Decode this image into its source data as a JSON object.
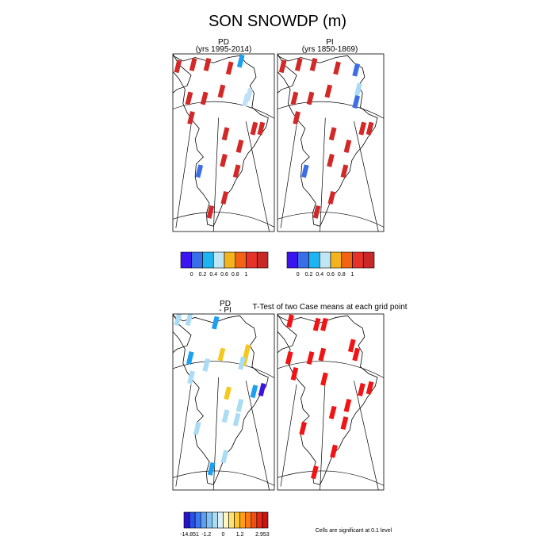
{
  "title": "SON SNOWDP (m)",
  "panels": [
    {
      "id": "pd",
      "label": "PD",
      "sublabel": "(yrs 1995-2014)"
    },
    {
      "id": "pi",
      "label": "PI",
      "sublabel": "(yrs 1850-1869)"
    },
    {
      "id": "diff",
      "label": "PD",
      "sublabel": "- PI"
    },
    {
      "id": "ttest",
      "label": "T-Test of two Case means at each grid point"
    }
  ],
  "colorbar_abs": {
    "colors": [
      "#3c14f0",
      "#3a6ee8",
      "#1eb4f0",
      "#bee6f5",
      "#f5b41e",
      "#f06414",
      "#e63228",
      "#c82828"
    ],
    "labels": [
      "0",
      "0.2",
      "0.4",
      "0.6",
      "0.8",
      "1"
    ]
  },
  "colorbar_diff": {
    "colors": [
      "#2814c8",
      "#2850e6",
      "#3c78f0",
      "#5aa0f5",
      "#82c3f5",
      "#aadcf5",
      "#dcf0fa",
      "#fff5be",
      "#ffe178",
      "#ffc828",
      "#ffa014",
      "#ff7814",
      "#f05014",
      "#e62814",
      "#c81414"
    ],
    "labels": [
      "-14.851",
      "-1.2",
      "0",
      "1.2",
      "2.953"
    ]
  },
  "significance_note": "Cells are significant at 0.1 level",
  "palette": {
    "red": "#d22828",
    "dark_blue": "#3c6ee6",
    "light_blue": "#aadcf5",
    "cyan": "#1ea0f0",
    "pale_blue": "#bee1f5",
    "yellow": "#f5c81e",
    "purple": "#3c14dc",
    "sig_red": "#f01414"
  },
  "cells": {
    "pd": [
      {
        "u": 0.05,
        "v": 0.07,
        "c": "red"
      },
      {
        "u": 0.2,
        "v": 0.06,
        "c": "red"
      },
      {
        "u": 0.34,
        "v": 0.06,
        "c": "red"
      },
      {
        "u": 0.56,
        "v": 0.08,
        "c": "red"
      },
      {
        "u": 0.67,
        "v": 0.04,
        "c": "cyan"
      },
      {
        "u": 0.16,
        "v": 0.25,
        "c": "red"
      },
      {
        "u": 0.31,
        "v": 0.25,
        "c": "red"
      },
      {
        "u": 0.48,
        "v": 0.21,
        "c": "red"
      },
      {
        "u": 0.75,
        "v": 0.23,
        "c": "pale_blue"
      },
      {
        "u": 0.72,
        "v": 0.26,
        "c": "pale_blue"
      },
      {
        "u": 0.18,
        "v": 0.36,
        "c": "red"
      },
      {
        "u": 0.52,
        "v": 0.45,
        "c": "red"
      },
      {
        "u": 0.8,
        "v": 0.42,
        "c": "red"
      },
      {
        "u": 0.87,
        "v": 0.42,
        "c": "red"
      },
      {
        "u": 0.66,
        "v": 0.52,
        "c": "red"
      },
      {
        "u": 0.5,
        "v": 0.6,
        "c": "red"
      },
      {
        "u": 0.63,
        "v": 0.66,
        "c": "red"
      },
      {
        "u": 0.26,
        "v": 0.66,
        "c": "dark_blue"
      },
      {
        "u": 0.51,
        "v": 0.81,
        "c": "red"
      },
      {
        "u": 0.37,
        "v": 0.89,
        "c": "red"
      }
    ],
    "pi": [
      {
        "u": 0.05,
        "v": 0.07,
        "c": "red"
      },
      {
        "u": 0.2,
        "v": 0.06,
        "c": "red"
      },
      {
        "u": 0.34,
        "v": 0.06,
        "c": "red"
      },
      {
        "u": 0.56,
        "v": 0.08,
        "c": "red"
      },
      {
        "u": 0.74,
        "v": 0.09,
        "c": "dark_blue"
      },
      {
        "u": 0.16,
        "v": 0.25,
        "c": "red"
      },
      {
        "u": 0.31,
        "v": 0.25,
        "c": "red"
      },
      {
        "u": 0.48,
        "v": 0.21,
        "c": "red"
      },
      {
        "u": 0.76,
        "v": 0.2,
        "c": "light_blue"
      },
      {
        "u": 0.74,
        "v": 0.27,
        "c": "dark_blue"
      },
      {
        "u": 0.18,
        "v": 0.36,
        "c": "red"
      },
      {
        "u": 0.52,
        "v": 0.45,
        "c": "red"
      },
      {
        "u": 0.8,
        "v": 0.42,
        "c": "red"
      },
      {
        "u": 0.87,
        "v": 0.42,
        "c": "red"
      },
      {
        "u": 0.66,
        "v": 0.52,
        "c": "red"
      },
      {
        "u": 0.5,
        "v": 0.6,
        "c": "red"
      },
      {
        "u": 0.63,
        "v": 0.66,
        "c": "red"
      },
      {
        "u": 0.26,
        "v": 0.66,
        "c": "dark_blue"
      },
      {
        "u": 0.51,
        "v": 0.81,
        "c": "red"
      },
      {
        "u": 0.37,
        "v": 0.89,
        "c": "red"
      }
    ],
    "diff": [
      {
        "u": 0.05,
        "v": 0.03,
        "c": "light_blue"
      },
      {
        "u": 0.16,
        "v": 0.03,
        "c": "light_blue"
      },
      {
        "u": 0.42,
        "v": 0.05,
        "c": "cyan"
      },
      {
        "u": 0.17,
        "v": 0.25,
        "c": "cyan"
      },
      {
        "u": 0.33,
        "v": 0.29,
        "c": "light_blue"
      },
      {
        "u": 0.48,
        "v": 0.23,
        "c": "yellow"
      },
      {
        "u": 0.73,
        "v": 0.21,
        "c": "yellow"
      },
      {
        "u": 0.71,
        "v": 0.26,
        "c": "yellow"
      },
      {
        "u": 0.68,
        "v": 0.28,
        "c": "light_blue"
      },
      {
        "u": 0.18,
        "v": 0.36,
        "c": "light_blue"
      },
      {
        "u": 0.54,
        "v": 0.45,
        "c": "yellow"
      },
      {
        "u": 0.8,
        "v": 0.44,
        "c": "cyan"
      },
      {
        "u": 0.88,
        "v": 0.43,
        "c": "purple"
      },
      {
        "u": 0.66,
        "v": 0.52,
        "c": "light_blue"
      },
      {
        "u": 0.52,
        "v": 0.58,
        "c": "light_blue"
      },
      {
        "u": 0.63,
        "v": 0.6,
        "c": "light_blue"
      },
      {
        "u": 0.24,
        "v": 0.65,
        "c": "light_blue"
      },
      {
        "u": 0.51,
        "v": 0.81,
        "c": "light_blue"
      },
      {
        "u": 0.38,
        "v": 0.88,
        "c": "cyan"
      }
    ],
    "ttest": [
      {
        "u": 0.12,
        "v": 0.04,
        "c": "sig_red"
      },
      {
        "u": 0.37,
        "v": 0.06,
        "c": "sig_red"
      },
      {
        "u": 0.44,
        "v": 0.06,
        "c": "sig_red"
      },
      {
        "u": 0.7,
        "v": 0.18,
        "c": "sig_red"
      },
      {
        "u": 0.11,
        "v": 0.25,
        "c": "sig_red"
      },
      {
        "u": 0.31,
        "v": 0.25,
        "c": "sig_red"
      },
      {
        "u": 0.42,
        "v": 0.23,
        "c": "sig_red"
      },
      {
        "u": 0.74,
        "v": 0.23,
        "c": "sig_red"
      },
      {
        "u": 0.16,
        "v": 0.34,
        "c": "sig_red"
      },
      {
        "u": 0.44,
        "v": 0.37,
        "c": "sig_red"
      },
      {
        "u": 0.79,
        "v": 0.43,
        "c": "sig_red"
      },
      {
        "u": 0.87,
        "v": 0.42,
        "c": "sig_red"
      },
      {
        "u": 0.66,
        "v": 0.52,
        "c": "sig_red"
      },
      {
        "u": 0.52,
        "v": 0.56,
        "c": "sig_red"
      },
      {
        "u": 0.63,
        "v": 0.62,
        "c": "sig_red"
      },
      {
        "u": 0.24,
        "v": 0.65,
        "c": "sig_red"
      },
      {
        "u": 0.53,
        "v": 0.78,
        "c": "sig_red"
      },
      {
        "u": 0.35,
        "v": 0.9,
        "c": "sig_red"
      }
    ]
  }
}
